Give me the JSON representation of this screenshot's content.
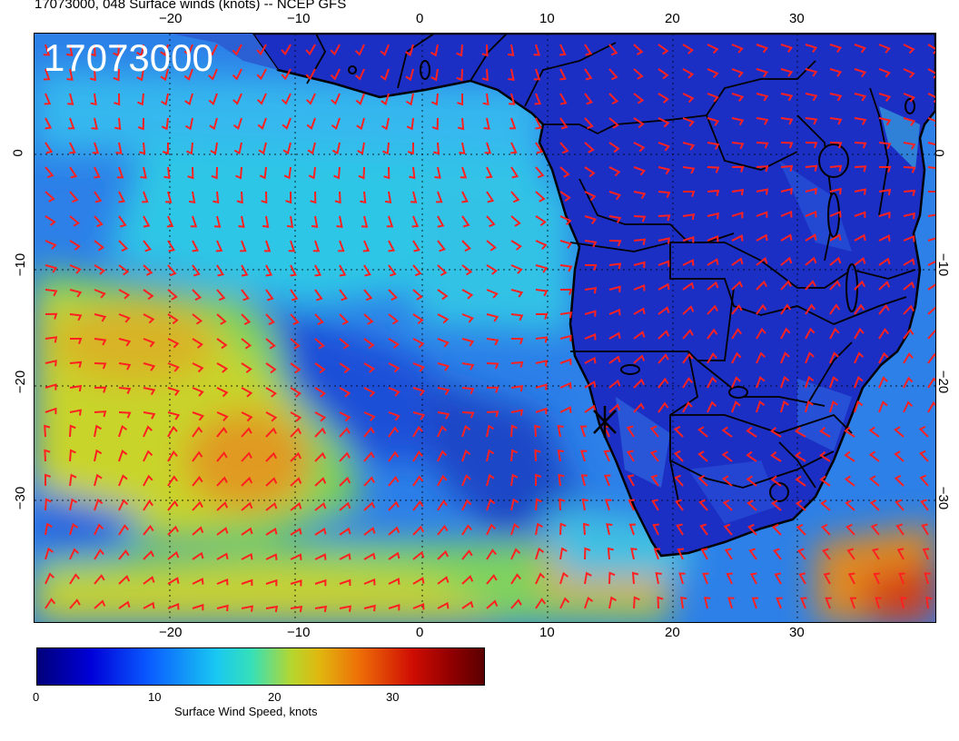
{
  "header": {
    "title": "17073000, 048 Surface winds (knots) -- NCEP GFS"
  },
  "map": {
    "stamp": "17073000",
    "lon_ticks": [
      "−20",
      "−10",
      "0",
      "10",
      "20",
      "30"
    ],
    "lat_ticks": [
      "0",
      "−10",
      "−20",
      "−30"
    ],
    "extent": {
      "lon": [
        -30,
        40
      ],
      "lat": [
        -40,
        10
      ]
    },
    "marker": {
      "lon": 14.5,
      "lat": -22.9
    },
    "colors": {
      "barbs": "#ff2020",
      "coast": "#000000",
      "grid": "#000000",
      "stamp": "#ffffff"
    }
  },
  "colorbar": {
    "ticks": [
      "0",
      "10",
      "20",
      "30"
    ],
    "range": [
      0,
      38
    ],
    "label": "Surface Wind Speed, knots"
  }
}
